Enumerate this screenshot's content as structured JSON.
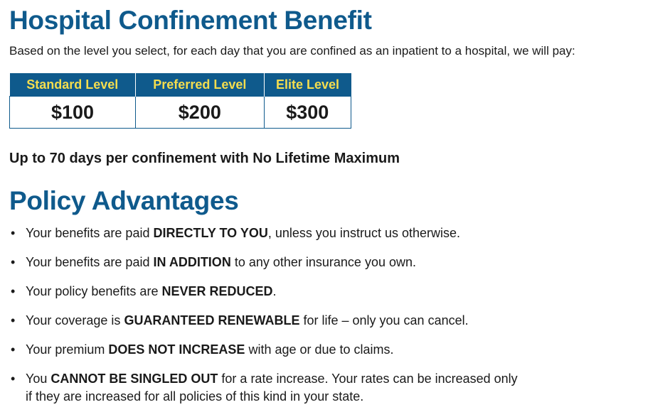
{
  "header": {
    "title": "Hospital Confinement Benefit",
    "subtitle": "Based on the level you select, for each day that you are confined as an inpatient to a hospital, we will pay:"
  },
  "table": {
    "columns": [
      "Standard Level",
      "Preferred Level",
      "Elite Level"
    ],
    "rows": [
      [
        "$100",
        "$200",
        "$300"
      ]
    ]
  },
  "note": "Up to 70 days per confinement with No Lifetime Maximum",
  "advantages": {
    "title": "Policy Advantages",
    "items": [
      {
        "before": "Your benefits are paid",
        "bold": "DIRECTLY TO YOU",
        "after": ", unless you instruct us otherwise."
      },
      {
        "before": "Your benefits are paid",
        "bold": "IN ADDITION",
        "after": "to any other insurance you own."
      },
      {
        "before": "Your policy benefits are",
        "bold": "NEVER REDUCED",
        "after": "."
      },
      {
        "before": "Your coverage is",
        "bold": "GUARANTEED RENEWABLE",
        "after": "for life – only you can cancel."
      },
      {
        "before": "Your premium",
        "bold": "DOES NOT INCREASE",
        "after": "with age or due to claims."
      },
      {
        "before": "You",
        "bold": "CANNOT BE SINGLED OUT",
        "after": "for a rate increase. Your rates can be increased only if they are increased for all policies of this kind in your state."
      }
    ]
  }
}
